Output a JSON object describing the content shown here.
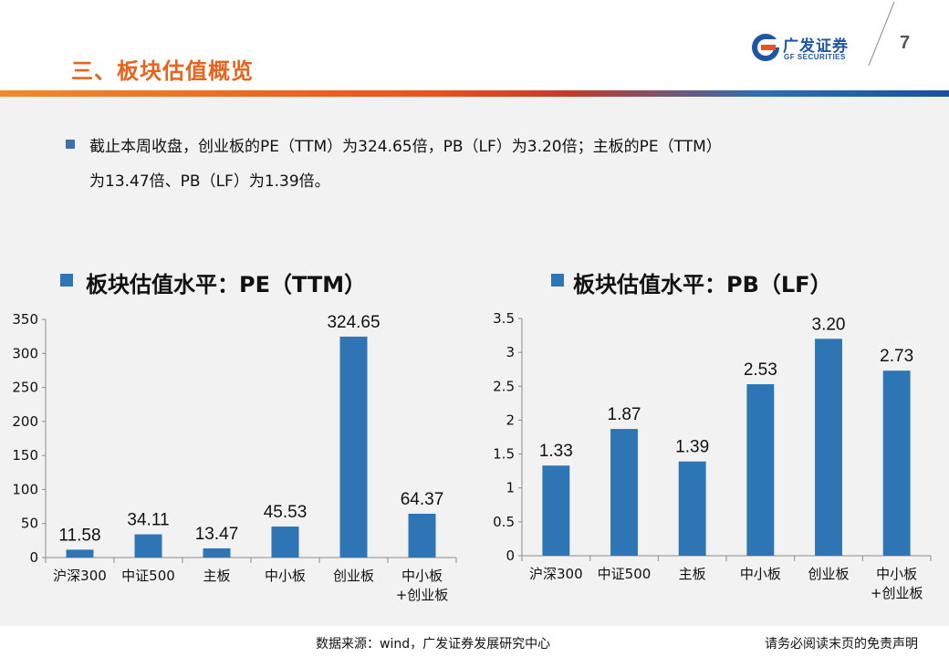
{
  "header": {
    "section_title": "三、板块估值概览",
    "logo_text": "广发证券",
    "logo_sub": "GF SECURITIES",
    "page_number": "7",
    "colors": {
      "title": "#e8641e",
      "brand": "#1c56a5"
    }
  },
  "bullet": {
    "line1": "截止本周收盘，创业板的PE（TTM）为324.65倍，PB（LF）为3.20倍；主板的PE（TTM）",
    "line2": "为13.47倍、PB（LF）为1.39倍。"
  },
  "chart_data": [
    {
      "type": "bar",
      "title": "板块估值水平：PE（TTM）",
      "categories": [
        "沪深300",
        "中证500",
        "主板",
        "中小板",
        "创业板",
        [
          "中小板",
          "+创业板"
        ]
      ],
      "values": [
        11.58,
        34.11,
        13.47,
        45.53,
        324.65,
        64.37
      ],
      "value_labels": [
        "11.58",
        "34.11",
        "13.47",
        "45.53",
        "324.65",
        "64.37"
      ],
      "yticks": [
        "0",
        "50",
        "100",
        "150",
        "200",
        "250",
        "300",
        "350"
      ],
      "ylim": [
        0,
        350
      ],
      "bar_color": "#2e75b6",
      "grid": false,
      "legend": "top"
    },
    {
      "type": "bar",
      "title": "板块估值水平：PB（LF）",
      "categories": [
        "沪深300",
        "中证500",
        "主板",
        "中小板",
        "创业板",
        [
          "中小板",
          "+创业板"
        ]
      ],
      "values": [
        1.33,
        1.87,
        1.39,
        2.53,
        3.2,
        2.73
      ],
      "value_labels": [
        "1.33",
        "1.87",
        "1.39",
        "2.53",
        "3.20",
        "2.73"
      ],
      "yticks": [
        "0",
        "0.5",
        "1",
        "1.5",
        "2",
        "2.5",
        "3",
        "3.5"
      ],
      "ylim": [
        0,
        3.5
      ],
      "bar_color": "#2e75b6",
      "grid": false,
      "legend": "top"
    }
  ],
  "footer": {
    "source": "数据来源：wind，广发证券发展研究中心",
    "disclaimer": "请务必阅读末页的免责声明"
  }
}
